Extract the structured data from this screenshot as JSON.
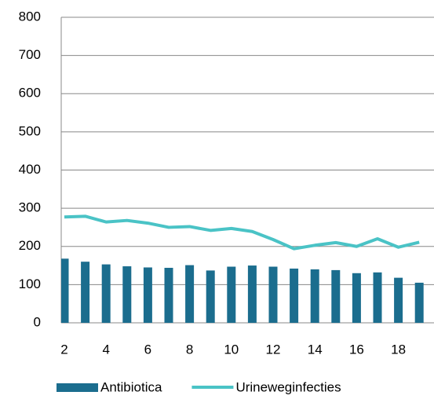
{
  "chart_data": {
    "type": "bar-line",
    "categories": [
      "2",
      null,
      "4",
      null,
      "6",
      null,
      "8",
      null,
      "10",
      null,
      "12",
      null,
      "14",
      null,
      "16",
      null,
      "18",
      null
    ],
    "series": [
      {
        "name": "Antibiotica",
        "type": "bar",
        "color": "#1b6d8e",
        "values": [
          168,
          160,
          153,
          148,
          145,
          144,
          151,
          137,
          147,
          150,
          147,
          142,
          140,
          138,
          130,
          132,
          118,
          105
        ]
      },
      {
        "name": "Urineweginfecties",
        "type": "line",
        "color": "#4ac3c6",
        "values": [
          277,
          279,
          264,
          268,
          261,
          250,
          252,
          242,
          247,
          239,
          218,
          194,
          203,
          210,
          200,
          220,
          198,
          211
        ]
      }
    ],
    "ylim": [
      0,
      800
    ],
    "yticks": [
      0,
      100,
      200,
      300,
      400,
      500,
      600,
      700,
      800
    ],
    "grid": true,
    "legend": "bottom"
  }
}
